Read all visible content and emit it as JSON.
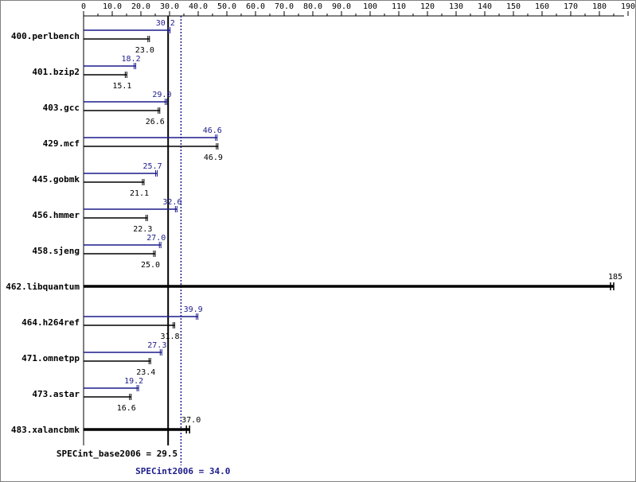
{
  "chart_data": {
    "type": "bar",
    "x_ticks": [
      "0",
      "10.0",
      "20.0",
      "30.0",
      "40.0",
      "50.0",
      "60.0",
      "70.0",
      "80.0",
      "90.0",
      "100",
      "110",
      "120",
      "130",
      "140",
      "150",
      "160",
      "170",
      "180",
      "190"
    ],
    "benchmarks": [
      {
        "name": "400.perlbench",
        "peak": 30.2,
        "peak_label": "30.2",
        "base": 23.0,
        "base_label": "23.0"
      },
      {
        "name": "401.bzip2",
        "peak": 18.2,
        "peak_label": "18.2",
        "base": 15.1,
        "base_label": "15.1"
      },
      {
        "name": "403.gcc",
        "peak": 29.0,
        "peak_label": "29.0",
        "base": 26.6,
        "base_label": "26.6"
      },
      {
        "name": "429.mcf",
        "peak": 46.6,
        "peak_label": "46.6",
        "base": 46.9,
        "base_label": "46.9"
      },
      {
        "name": "445.gobmk",
        "peak": 25.7,
        "peak_label": "25.7",
        "base": 21.1,
        "base_label": "21.1"
      },
      {
        "name": "456.hmmer",
        "peak": 32.6,
        "peak_label": "32.6",
        "base": 22.3,
        "base_label": "22.3"
      },
      {
        "name": "458.sjeng",
        "peak": 27.0,
        "peak_label": "27.0",
        "base": 25.0,
        "base_label": "25.0"
      },
      {
        "name": "462.libquantum",
        "value": 185,
        "value_label": "185"
      },
      {
        "name": "464.h264ref",
        "peak": 39.9,
        "peak_label": "39.9",
        "base": 31.8,
        "base_label": "31.8"
      },
      {
        "name": "471.omnetpp",
        "peak": 27.3,
        "peak_label": "27.3",
        "base": 23.4,
        "base_label": "23.4"
      },
      {
        "name": "473.astar",
        "peak": 19.2,
        "peak_label": "19.2",
        "base": 16.6,
        "base_label": "16.6"
      },
      {
        "name": "483.xalancbmk",
        "value": 37.0,
        "value_label": "37.0"
      }
    ],
    "base_summary": {
      "value": 29.5,
      "label": "SPECint_base2006 = 29.5"
    },
    "peak_summary": {
      "value": 34.0,
      "label": "SPECint2006 = 34.0"
    },
    "xlim": [
      0,
      190
    ],
    "grid": false,
    "colors": {
      "peak": "#1c1c8c",
      "base": "#000000"
    }
  }
}
